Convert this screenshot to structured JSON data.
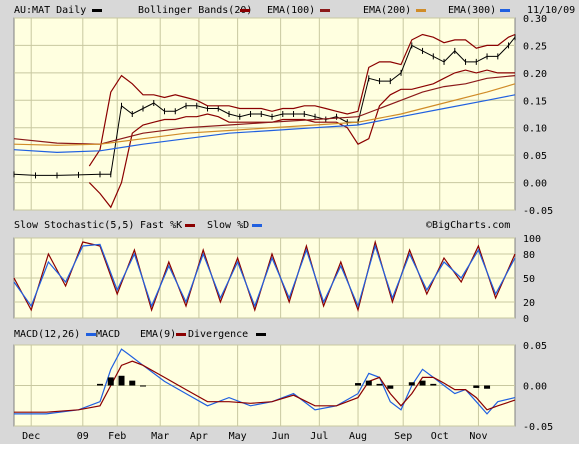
{
  "header": {
    "symbol_label": "AU:MAT Daily",
    "bb_label": "Bollinger Bands(20)",
    "ema100_label": "EMA(100)",
    "ema200_label": "EMA(200)",
    "ema300_label": "EMA(300)",
    "date": "11/10/09"
  },
  "stoch_header": {
    "title": "Slow Stochastic(5,5)",
    "fast_label": "Fast %K",
    "slow_label": "Slow %D",
    "watermark": "©BigCharts.com"
  },
  "macd_header": {
    "title": "MACD(12,26)",
    "macd_label": "MACD",
    "ema_label": "EMA(9)",
    "div_label": "Divergence"
  },
  "colors": {
    "bg": "#ffffe0",
    "grid": "#c8c8a0",
    "frame": "#d8d8d8",
    "price": "#000000",
    "bollinger": "#8b0000",
    "ema100": "#8b1a1a",
    "ema200": "#d08c28",
    "ema300": "#2060e0",
    "stoch_k": "#8b0000",
    "stoch_d": "#2060e0",
    "macd": "#2060e0",
    "macd_ema": "#8b0000",
    "divergence": "#000000"
  },
  "chart_data": [
    {
      "type": "line",
      "panel": "price",
      "title": "AU:MAT Daily",
      "x_tick_labels": [
        "Dec",
        "09",
        "Feb",
        "Mar",
        "Apr",
        "May",
        "Jun",
        "Jul",
        "Aug",
        "Sep",
        "Oct",
        "Nov"
      ],
      "ylim": [
        -0.05,
        0.3
      ],
      "y_ticks": [
        -0.05,
        0.0,
        0.05,
        0.1,
        0.15,
        0.2,
        0.25,
        0.3
      ],
      "y_tick_labels": [
        "-0.05",
        "0.00",
        "0.05",
        "0.10",
        "0.15",
        "0.20",
        "0.25",
        "0.30"
      ],
      "series": [
        {
          "name": "Price",
          "x": [
            0,
            10,
            20,
            30,
            40,
            45,
            50,
            55,
            60,
            65,
            70,
            75,
            80,
            85,
            90,
            95,
            100,
            105,
            110,
            115,
            120,
            125,
            130,
            135,
            140,
            145,
            150,
            155,
            160,
            165,
            170,
            175,
            180,
            185,
            190,
            195,
            200,
            205,
            210,
            215,
            220,
            225,
            230,
            233
          ],
          "values": [
            0.015,
            0.013,
            0.013,
            0.014,
            0.015,
            0.015,
            0.14,
            0.125,
            0.135,
            0.145,
            0.13,
            0.13,
            0.14,
            0.14,
            0.135,
            0.135,
            0.125,
            0.12,
            0.125,
            0.125,
            0.12,
            0.125,
            0.125,
            0.125,
            0.12,
            0.115,
            0.12,
            0.11,
            0.11,
            0.19,
            0.185,
            0.185,
            0.2,
            0.25,
            0.24,
            0.23,
            0.22,
            0.24,
            0.22,
            0.22,
            0.23,
            0.23,
            0.25,
            0.265
          ]
        },
        {
          "name": "Upper band",
          "x": [
            35,
            40,
            45,
            50,
            55,
            60,
            65,
            70,
            75,
            80,
            85,
            90,
            95,
            100,
            105,
            110,
            115,
            120,
            125,
            130,
            135,
            140,
            145,
            150,
            155,
            160,
            165,
            170,
            175,
            180,
            185,
            190,
            195,
            200,
            205,
            210,
            215,
            220,
            225,
            230,
            233
          ],
          "values": [
            0.03,
            0.06,
            0.165,
            0.195,
            0.18,
            0.16,
            0.16,
            0.155,
            0.16,
            0.155,
            0.15,
            0.14,
            0.14,
            0.14,
            0.135,
            0.135,
            0.135,
            0.13,
            0.135,
            0.135,
            0.14,
            0.14,
            0.135,
            0.13,
            0.125,
            0.13,
            0.21,
            0.22,
            0.22,
            0.215,
            0.26,
            0.27,
            0.265,
            0.255,
            0.26,
            0.26,
            0.245,
            0.25,
            0.25,
            0.265,
            0.27
          ]
        },
        {
          "name": "Lower band",
          "x": [
            35,
            40,
            45,
            50,
            55,
            60,
            65,
            70,
            75,
            80,
            85,
            90,
            95,
            100,
            105,
            110,
            115,
            120,
            125,
            130,
            135,
            140,
            145,
            150,
            155,
            160,
            165,
            170,
            175,
            180,
            185,
            190,
            195,
            200,
            205,
            210,
            215,
            220,
            225,
            230,
            233
          ],
          "values": [
            0.0,
            -0.02,
            -0.045,
            0.0,
            0.09,
            0.105,
            0.11,
            0.115,
            0.115,
            0.12,
            0.12,
            0.125,
            0.12,
            0.11,
            0.11,
            0.11,
            0.11,
            0.11,
            0.115,
            0.115,
            0.115,
            0.11,
            0.11,
            0.11,
            0.1,
            0.07,
            0.08,
            0.14,
            0.16,
            0.17,
            0.17,
            0.175,
            0.18,
            0.19,
            0.2,
            0.205,
            0.2,
            0.205,
            0.2,
            0.2,
            0.2
          ]
        },
        {
          "name": "EMA(100)",
          "x": [
            0,
            20,
            40,
            60,
            80,
            100,
            120,
            140,
            160,
            170,
            180,
            190,
            200,
            210,
            220,
            233
          ],
          "values": [
            0.08,
            0.072,
            0.07,
            0.09,
            0.1,
            0.105,
            0.11,
            0.115,
            0.12,
            0.135,
            0.15,
            0.165,
            0.175,
            0.18,
            0.19,
            0.195
          ]
        },
        {
          "name": "EMA(200)",
          "x": [
            0,
            20,
            40,
            60,
            80,
            100,
            120,
            140,
            160,
            180,
            200,
            220,
            233
          ],
          "values": [
            0.07,
            0.068,
            0.07,
            0.08,
            0.09,
            0.095,
            0.1,
            0.105,
            0.11,
            0.125,
            0.145,
            0.165,
            0.18
          ]
        },
        {
          "name": "EMA(300)",
          "x": [
            0,
            20,
            40,
            60,
            80,
            100,
            120,
            140,
            160,
            180,
            200,
            220,
            233
          ],
          "values": [
            0.06,
            0.055,
            0.058,
            0.07,
            0.08,
            0.09,
            0.095,
            0.1,
            0.105,
            0.12,
            0.135,
            0.15,
            0.16
          ]
        }
      ]
    },
    {
      "type": "line",
      "panel": "stochastic",
      "title": "Slow Stochastic(5,5)",
      "ylim": [
        0,
        100
      ],
      "y_ticks": [
        0,
        20,
        50,
        80,
        100
      ],
      "y_tick_labels": [
        "0",
        "20",
        "50",
        "80",
        "100"
      ],
      "series": [
        {
          "name": "Fast %K",
          "x": [
            0,
            8,
            16,
            24,
            32,
            40,
            48,
            56,
            64,
            72,
            80,
            88,
            96,
            104,
            112,
            120,
            128,
            136,
            144,
            152,
            160,
            168,
            176,
            184,
            192,
            200,
            208,
            216,
            224,
            233
          ],
          "values": [
            50,
            10,
            80,
            40,
            95,
            90,
            30,
            85,
            10,
            70,
            15,
            85,
            20,
            75,
            10,
            80,
            20,
            90,
            15,
            70,
            10,
            95,
            20,
            85,
            30,
            75,
            45,
            90,
            25,
            80
          ]
        },
        {
          "name": "Slow %D",
          "x": [
            0,
            8,
            16,
            24,
            32,
            40,
            48,
            56,
            64,
            72,
            80,
            88,
            96,
            104,
            112,
            120,
            128,
            136,
            144,
            152,
            160,
            168,
            176,
            184,
            192,
            200,
            208,
            216,
            224,
            233
          ],
          "values": [
            45,
            15,
            70,
            45,
            90,
            92,
            35,
            80,
            15,
            65,
            20,
            80,
            25,
            70,
            15,
            75,
            25,
            85,
            20,
            65,
            15,
            90,
            25,
            80,
            35,
            70,
            50,
            85,
            30,
            75
          ]
        }
      ]
    },
    {
      "type": "line",
      "panel": "macd",
      "title": "MACD(12,26)",
      "ylim": [
        -0.05,
        0.05
      ],
      "y_ticks": [
        -0.05,
        0.0,
        0.05
      ],
      "y_tick_labels": [
        "-0.05",
        "0.00",
        "0.05"
      ],
      "series": [
        {
          "name": "MACD",
          "x": [
            0,
            15,
            30,
            40,
            45,
            50,
            55,
            60,
            70,
            80,
            90,
            100,
            110,
            120,
            130,
            140,
            150,
            160,
            165,
            170,
            175,
            180,
            185,
            190,
            195,
            200,
            205,
            210,
            215,
            220,
            225,
            233
          ],
          "values": [
            -0.035,
            -0.035,
            -0.03,
            -0.02,
            0.02,
            0.045,
            0.035,
            0.025,
            0.005,
            -0.01,
            -0.025,
            -0.015,
            -0.025,
            -0.02,
            -0.01,
            -0.03,
            -0.025,
            -0.01,
            0.015,
            0.01,
            -0.02,
            -0.03,
            0.0,
            0.02,
            0.01,
            0.0,
            -0.01,
            -0.005,
            -0.02,
            -0.035,
            -0.02,
            -0.015
          ]
        },
        {
          "name": "EMA(9)",
          "x": [
            0,
            15,
            30,
            40,
            45,
            50,
            55,
            60,
            70,
            80,
            90,
            100,
            110,
            120,
            130,
            140,
            150,
            160,
            165,
            170,
            175,
            180,
            185,
            190,
            195,
            200,
            205,
            210,
            215,
            220,
            225,
            233
          ],
          "values": [
            -0.033,
            -0.033,
            -0.03,
            -0.025,
            0.0,
            0.025,
            0.03,
            0.025,
            0.01,
            -0.005,
            -0.02,
            -0.02,
            -0.022,
            -0.02,
            -0.012,
            -0.025,
            -0.025,
            -0.015,
            0.005,
            0.01,
            -0.01,
            -0.025,
            -0.01,
            0.01,
            0.01,
            0.003,
            -0.005,
            -0.005,
            -0.015,
            -0.03,
            -0.025,
            -0.018
          ]
        },
        {
          "name": "Divergence",
          "x": [
            40,
            45,
            50,
            55,
            60,
            160,
            165,
            170,
            175,
            185,
            190,
            195,
            215,
            220
          ],
          "values": [
            0.002,
            0.01,
            0.012,
            0.006,
            0.0,
            0.003,
            0.006,
            0.002,
            -0.004,
            0.004,
            0.006,
            0.002,
            -0.003,
            -0.004
          ]
        }
      ]
    }
  ]
}
